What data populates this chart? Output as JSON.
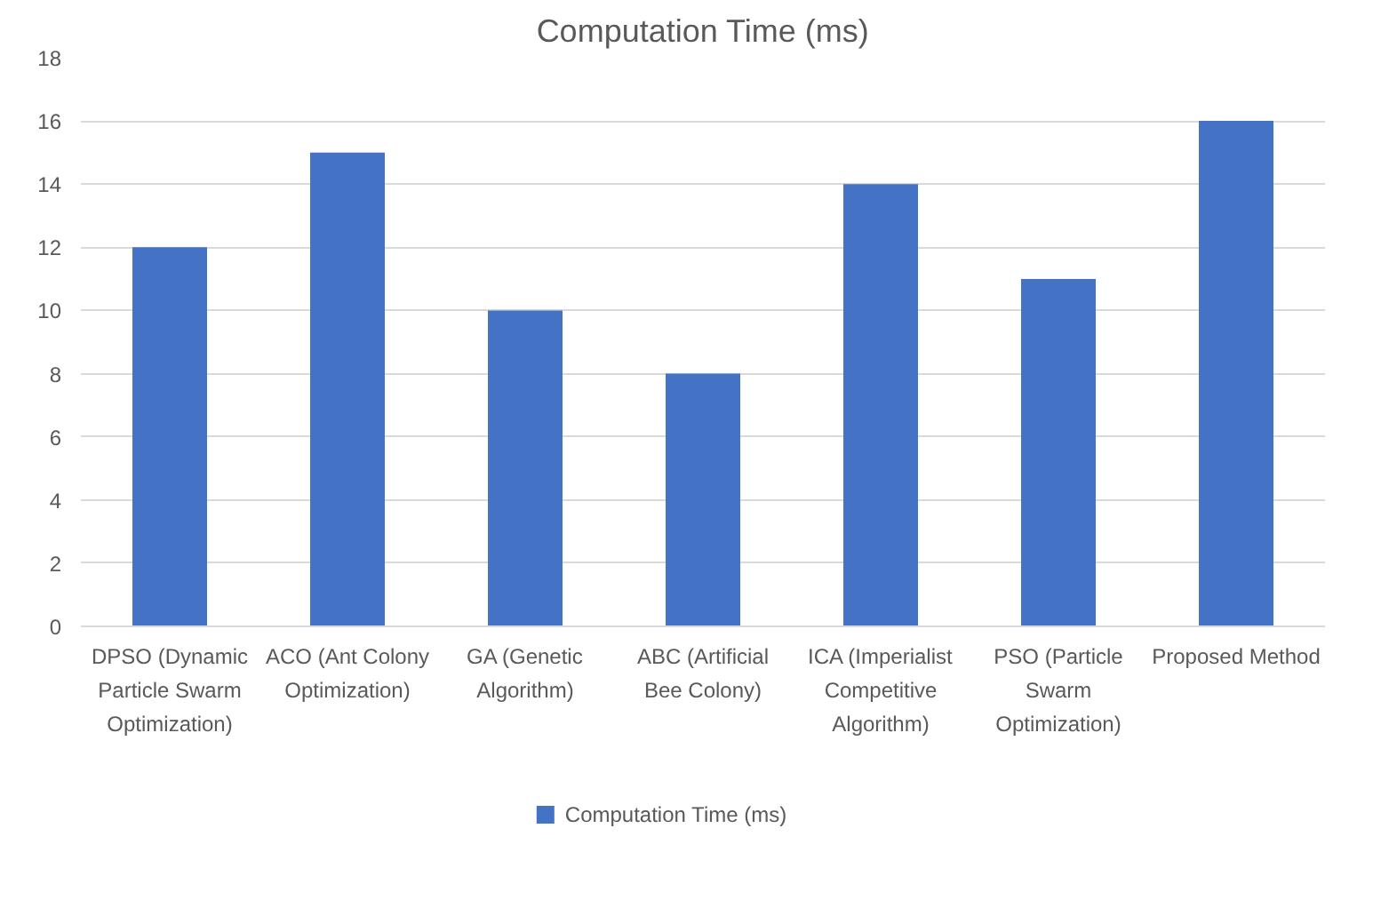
{
  "chart_data": {
    "type": "bar",
    "title": "Computation Time (ms)",
    "categories": [
      "DPSO (Dynamic Particle Swarm Optimization)",
      "ACO (Ant Colony Optimization)",
      "GA (Genetic Algorithm)",
      "ABC (Artificial Bee Colony)",
      "ICA (Imperialist Competitive Algorithm)",
      "PSO (Particle Swarm Optimization)",
      "Proposed Method"
    ],
    "series": [
      {
        "name": "Computation Time (ms)",
        "color": "#4472c4",
        "values": [
          12,
          15,
          10,
          8,
          14,
          11,
          16
        ]
      }
    ],
    "ylim": [
      0,
      18
    ],
    "yticks": [
      0,
      2,
      4,
      6,
      8,
      10,
      12,
      14,
      16,
      18
    ],
    "grid": "y",
    "legend": "bottom"
  }
}
